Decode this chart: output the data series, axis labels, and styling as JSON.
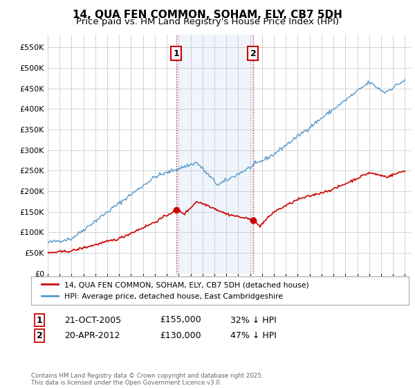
{
  "title": "14, QUA FEN COMMON, SOHAM, ELY, CB7 5DH",
  "subtitle": "Price paid vs. HM Land Registry's House Price Index (HPI)",
  "ylabel_ticks": [
    "£0",
    "£50K",
    "£100K",
    "£150K",
    "£200K",
    "£250K",
    "£300K",
    "£350K",
    "£400K",
    "£450K",
    "£500K",
    "£550K"
  ],
  "ytick_values": [
    0,
    50000,
    100000,
    150000,
    200000,
    250000,
    300000,
    350000,
    400000,
    450000,
    500000,
    550000
  ],
  "ylim": [
    0,
    580000
  ],
  "x_start_year": 1995,
  "x_end_year": 2025,
  "red_line_color": "#cc0000",
  "blue_line_color": "#5599cc",
  "vline_color": "#cc0000",
  "vline_style": ":",
  "marker1_date": 2005.8,
  "marker2_date": 2012.25,
  "legend_line1": "14, QUA FEN COMMON, SOHAM, ELY, CB7 5DH (detached house)",
  "legend_line2": "HPI: Average price, detached house, East Cambridgeshire",
  "table_row1": [
    "1",
    "21-OCT-2005",
    "£155,000",
    "32% ↓ HPI"
  ],
  "table_row2": [
    "2",
    "20-APR-2012",
    "£130,000",
    "47% ↓ HPI"
  ],
  "footnote": "Contains HM Land Registry data © Crown copyright and database right 2025.\nThis data is licensed under the Open Government Licence v3.0.",
  "background_color": "#ffffff",
  "plot_bg_color": "#ffffff",
  "grid_color": "#cccccc"
}
